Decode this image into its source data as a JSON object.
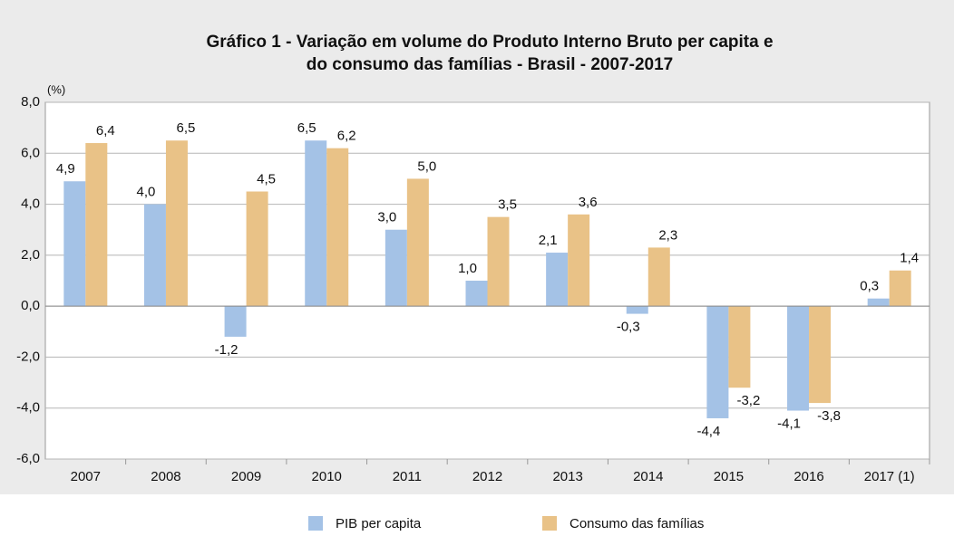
{
  "chart_data": {
    "type": "bar",
    "title": [
      "Gráfico 1 - Variação em volume do Produto Interno Bruto per capita e",
      "do consumo das famílias - Brasil - 2007-2017"
    ],
    "y_unit": "(%)",
    "categories": [
      "2007",
      "2008",
      "2009",
      "2010",
      "2011",
      "2012",
      "2013",
      "2014",
      "2015",
      "2016",
      "2017 (1)"
    ],
    "series": [
      {
        "name": "PIB per capita",
        "color": "#a4c2e6",
        "values": [
          4.9,
          4.0,
          -1.2,
          6.5,
          3.0,
          1.0,
          2.1,
          -0.3,
          -4.4,
          -4.1,
          0.3
        ],
        "value_labels": [
          "4,9",
          "4,0",
          "-1,2",
          "6,5",
          "3,0",
          "1,0",
          "2,1",
          "-0,3",
          "-4,4",
          "-4,1",
          "0,3"
        ]
      },
      {
        "name": "Consumo das famílias",
        "color": "#e9c287",
        "values": [
          6.4,
          6.5,
          4.5,
          6.2,
          5.0,
          3.5,
          3.6,
          2.3,
          -3.2,
          -3.8,
          1.4
        ],
        "value_labels": [
          "6,4",
          "6,5",
          "4,5",
          "6,2",
          "5,0",
          "3,5",
          "3,6",
          "2,3",
          "-3,2",
          "-3,8",
          "1,4"
        ]
      }
    ],
    "ylim": [
      -6,
      8
    ],
    "yticks": [
      {
        "value": -6,
        "label": "-6,0"
      },
      {
        "value": -4,
        "label": "-4,0"
      },
      {
        "value": -2,
        "label": "-2,0"
      },
      {
        "value": 0,
        "label": "0,0"
      },
      {
        "value": 2,
        "label": "2,0"
      },
      {
        "value": 4,
        "label": "4,0"
      },
      {
        "value": 6,
        "label": "6,0"
      },
      {
        "value": 8,
        "label": "8,0"
      }
    ],
    "grid": true,
    "legend": "bottom"
  }
}
